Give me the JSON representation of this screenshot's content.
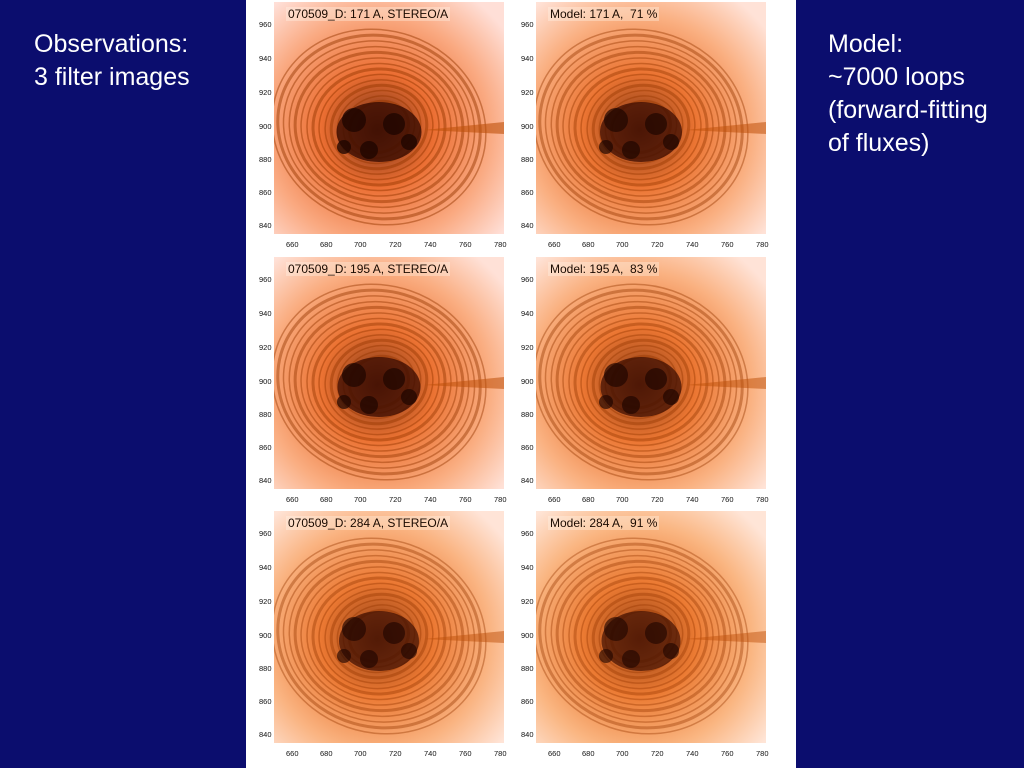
{
  "left_text": {
    "lines": [
      "Observations:",
      "3 filter images"
    ]
  },
  "right_text": {
    "lines": [
      "Model:",
      "~7000 loops",
      "(forward-fitting",
      "of fluxes)"
    ]
  },
  "colors": {
    "background": "#0b0d6e",
    "text": "#ffffff",
    "figure_bg": "#ffffff"
  },
  "panels": [
    {
      "title": "070509_D: 171 A, STEREO/A",
      "kind": "obs",
      "filter": "171",
      "darkness": 0.75
    },
    {
      "title": "Model: 171 A,  71 %",
      "kind": "model",
      "filter": "171",
      "darkness": 0.6
    },
    {
      "title": "070509_D: 195 A, STEREO/A",
      "kind": "obs",
      "filter": "195",
      "darkness": 0.65
    },
    {
      "title": "Model: 195 A,  83 %",
      "kind": "model",
      "filter": "195",
      "darkness": 0.55
    },
    {
      "title": "070509_D: 284 A, STEREO/A",
      "kind": "obs",
      "filter": "284",
      "darkness": 0.5
    },
    {
      "title": "Model: 284 A,  91 %",
      "kind": "model",
      "filter": "284",
      "darkness": 0.45
    }
  ],
  "axes": {
    "y_ticks": [
      "960",
      "940",
      "920",
      "900",
      "880",
      "860",
      "840"
    ],
    "x_ticks": [
      "660",
      "680",
      "700",
      "720",
      "740",
      "760",
      "780"
    ]
  }
}
